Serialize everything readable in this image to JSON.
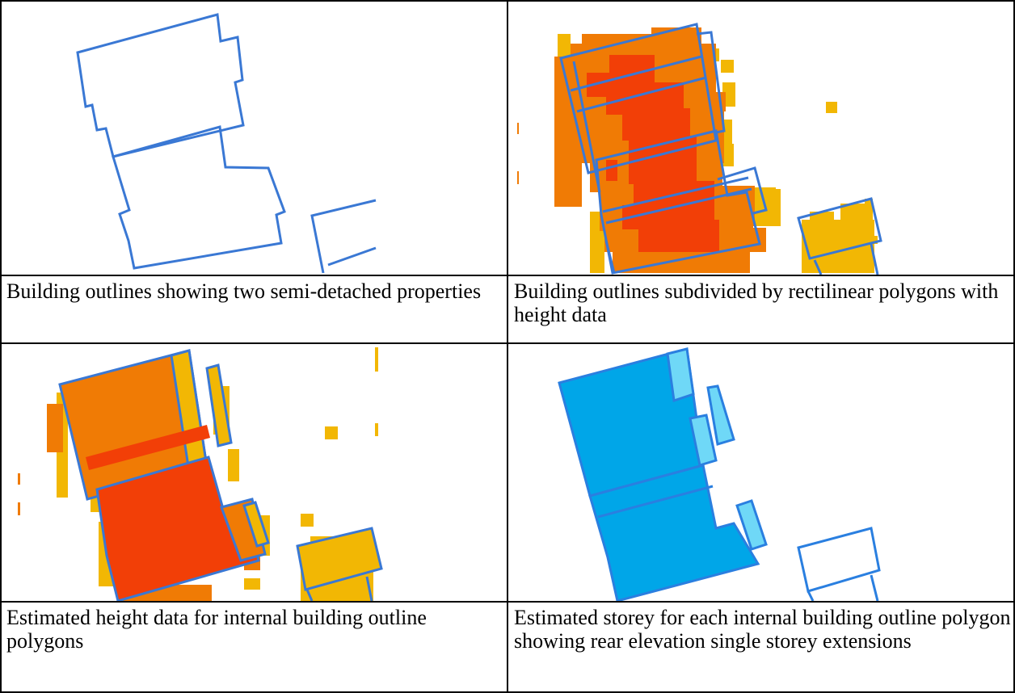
{
  "panels": [
    {
      "caption": "Building outlines showing two semi-detached properties"
    },
    {
      "caption": "Building outlines subdivided by rectilinear polygons with height data"
    },
    {
      "caption": "Estimated height data for internal building outline polygons"
    },
    {
      "caption": "Estimated storey for each internal building outline polygon showing rear elevation single storey extensions"
    }
  ],
  "colors": {
    "outline": "#3a78d4",
    "height_high": "#f23f07",
    "height_mid": "#f07b05",
    "height_low": "#f2b704",
    "storey_main": "#00a6e8",
    "storey_single": "#6fd8f7"
  }
}
